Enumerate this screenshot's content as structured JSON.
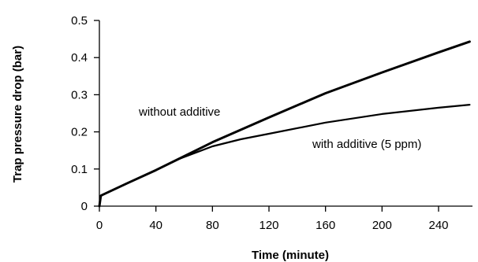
{
  "chart_data": {
    "type": "line",
    "xlabel": "Time (minute)",
    "ylabel": "Trap pressure drop (bar)",
    "xlim": [
      0,
      264
    ],
    "ylim": [
      0,
      0.5
    ],
    "x_ticks": [
      0,
      40,
      80,
      120,
      160,
      200,
      240
    ],
    "x_tick_labels": [
      "0",
      "40",
      "80",
      "120",
      "160",
      "200",
      "240"
    ],
    "y_ticks": [
      0,
      0.1,
      0.2,
      0.3,
      0.4,
      0.5
    ],
    "y_tick_labels": [
      "0",
      "0.1",
      "0.2",
      "0.3",
      "0.4",
      "0.5"
    ],
    "grid": false,
    "legend": "none",
    "series": [
      {
        "label": "without additive",
        "x": [
          0,
          1,
          2,
          20,
          40,
          55,
          80,
          120,
          160,
          200,
          240,
          262
        ],
        "y": [
          0,
          0.028,
          0.03,
          0.062,
          0.097,
          0.125,
          0.172,
          0.239,
          0.304,
          0.36,
          0.414,
          0.443
        ]
      },
      {
        "label": "with additive (5 ppm)",
        "x": [
          55,
          80,
          100,
          120,
          160,
          200,
          240,
          262
        ],
        "y": [
          0.125,
          0.161,
          0.18,
          0.195,
          0.225,
          0.248,
          0.265,
          0.273
        ]
      }
    ],
    "annotations": [
      "without additive",
      "with additive (5 ppm)"
    ]
  }
}
